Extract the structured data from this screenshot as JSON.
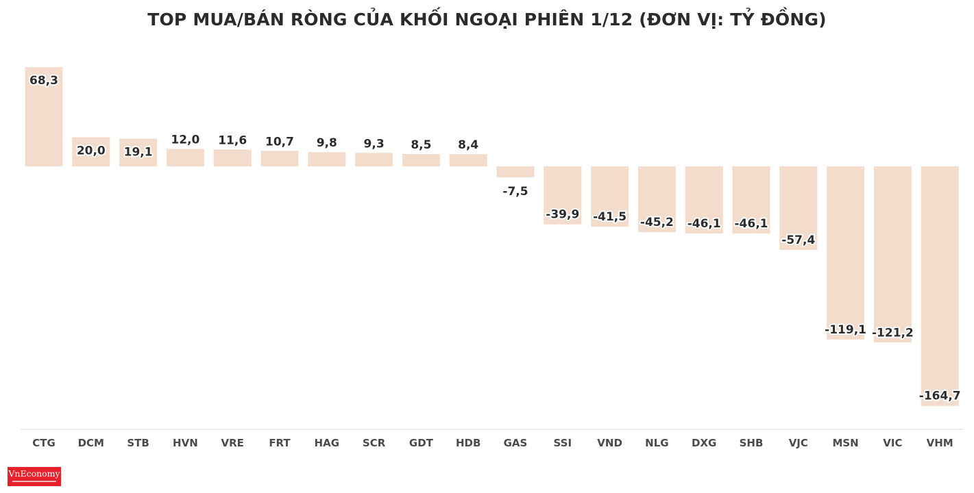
{
  "chart_data": {
    "type": "bar",
    "title": "TOP MUA/BÁN RÒNG CỦA KHỐI NGOẠI PHIÊN 1/12 (ĐƠN VỊ: TỶ ĐỒNG)",
    "categories": [
      "CTG",
      "DCM",
      "STB",
      "HVN",
      "VRE",
      "FRT",
      "HAG",
      "SCR",
      "GDT",
      "HDB",
      "GAS",
      "SSI",
      "VND",
      "NLG",
      "DXG",
      "SHB",
      "VJC",
      "MSN",
      "VIC",
      "VHM"
    ],
    "values": [
      68.3,
      20.0,
      19.1,
      12.0,
      11.6,
      10.7,
      9.8,
      9.3,
      8.5,
      8.4,
      -7.5,
      -39.9,
      -41.5,
      -45.2,
      -46.1,
      -46.1,
      -57.4,
      -119.1,
      -121.2,
      -164.7
    ],
    "value_labels": [
      "68,3",
      "20,0",
      "19,1",
      "12,0",
      "11,6",
      "10,7",
      "9,8",
      "9,3",
      "8,5",
      "8,4",
      "-7,5",
      "-39,9",
      "-41,5",
      "-45,2",
      "-46,1",
      "-46,1",
      "-57,4",
      "-119,1",
      "-121,2",
      "-164,7"
    ],
    "xlabel": "",
    "ylabel": "",
    "ylim": [
      -179,
      68.3
    ],
    "grid": false,
    "legend": "none",
    "bar_color": "#f3dccb"
  },
  "logo": {
    "text": "VnEconomy",
    "color": "#e8202a"
  }
}
